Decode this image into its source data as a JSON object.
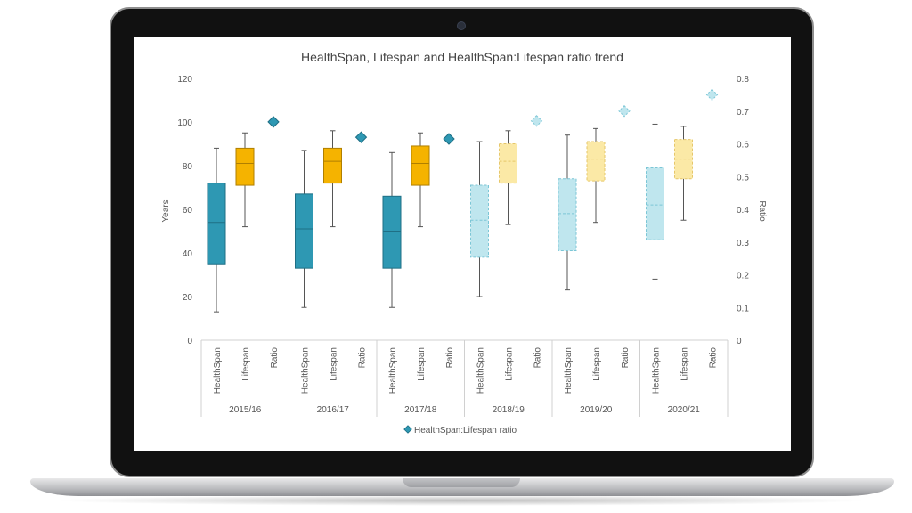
{
  "chart_data": {
    "type": "box",
    "title": "HealthSpan, Lifespan and HealthSpan:Lifespan ratio trend",
    "ylabel_left": "Years",
    "ylabel_right": "Ratio",
    "ylim_left": [
      0,
      120
    ],
    "ylim_right": [
      0,
      0.8
    ],
    "yticks_left": [
      "0",
      "20",
      "40",
      "60",
      "80",
      "100",
      "120"
    ],
    "yticks_right": [
      "0",
      "0.1",
      "0.2",
      "0.3",
      "0.4",
      "0.5",
      "0.6",
      "0.7",
      "0.8"
    ],
    "group_labels": [
      "2015/16",
      "2016/17",
      "2017/18",
      "2018/19",
      "2019/20",
      "2020/21"
    ],
    "category_labels": [
      "HealthSpan",
      "Lifespan",
      "Ratio"
    ],
    "legend": {
      "label": "HealthSpan:Lifespan ratio",
      "position": "bottom"
    },
    "colors": {
      "healthspan": "#2e98b3",
      "lifespan": "#f5b300",
      "healthspan_projected": "#bfe6ee",
      "lifespan_projected": "#fbe9a6",
      "ratio": "#2e98b3",
      "ratio_projected": "#bfe6ee"
    },
    "groups": [
      {
        "healthspan": {
          "min": 13,
          "q1": 35,
          "median": 54,
          "q3": 72,
          "max": 88
        },
        "lifespan": {
          "min": 52,
          "q1": 71,
          "median": 81,
          "q3": 88,
          "max": 95
        },
        "ratio": 0.667,
        "projected": false
      },
      {
        "healthspan": {
          "min": 15,
          "q1": 33,
          "median": 51,
          "q3": 67,
          "max": 87
        },
        "lifespan": {
          "min": 52,
          "q1": 72,
          "median": 82,
          "q3": 88,
          "max": 96
        },
        "ratio": 0.62,
        "projected": false
      },
      {
        "healthspan": {
          "min": 15,
          "q1": 33,
          "median": 50,
          "q3": 66,
          "max": 86
        },
        "lifespan": {
          "min": 52,
          "q1": 71,
          "median": 81,
          "q3": 89,
          "max": 95
        },
        "ratio": 0.615,
        "projected": false
      },
      {
        "healthspan": {
          "min": 20,
          "q1": 38,
          "median": 55,
          "q3": 71,
          "max": 91
        },
        "lifespan": {
          "min": 53,
          "q1": 72,
          "median": 82,
          "q3": 90,
          "max": 96
        },
        "ratio": 0.67,
        "projected": true
      },
      {
        "healthspan": {
          "min": 23,
          "q1": 41,
          "median": 58,
          "q3": 74,
          "max": 94
        },
        "lifespan": {
          "min": 54,
          "q1": 73,
          "median": 83,
          "q3": 91,
          "max": 97
        },
        "ratio": 0.7,
        "projected": true
      },
      {
        "healthspan": {
          "min": 28,
          "q1": 46,
          "median": 62,
          "q3": 79,
          "max": 99
        },
        "lifespan": {
          "min": 55,
          "q1": 74,
          "median": 83,
          "q3": 92,
          "max": 98
        },
        "ratio": 0.75,
        "projected": true
      }
    ]
  }
}
